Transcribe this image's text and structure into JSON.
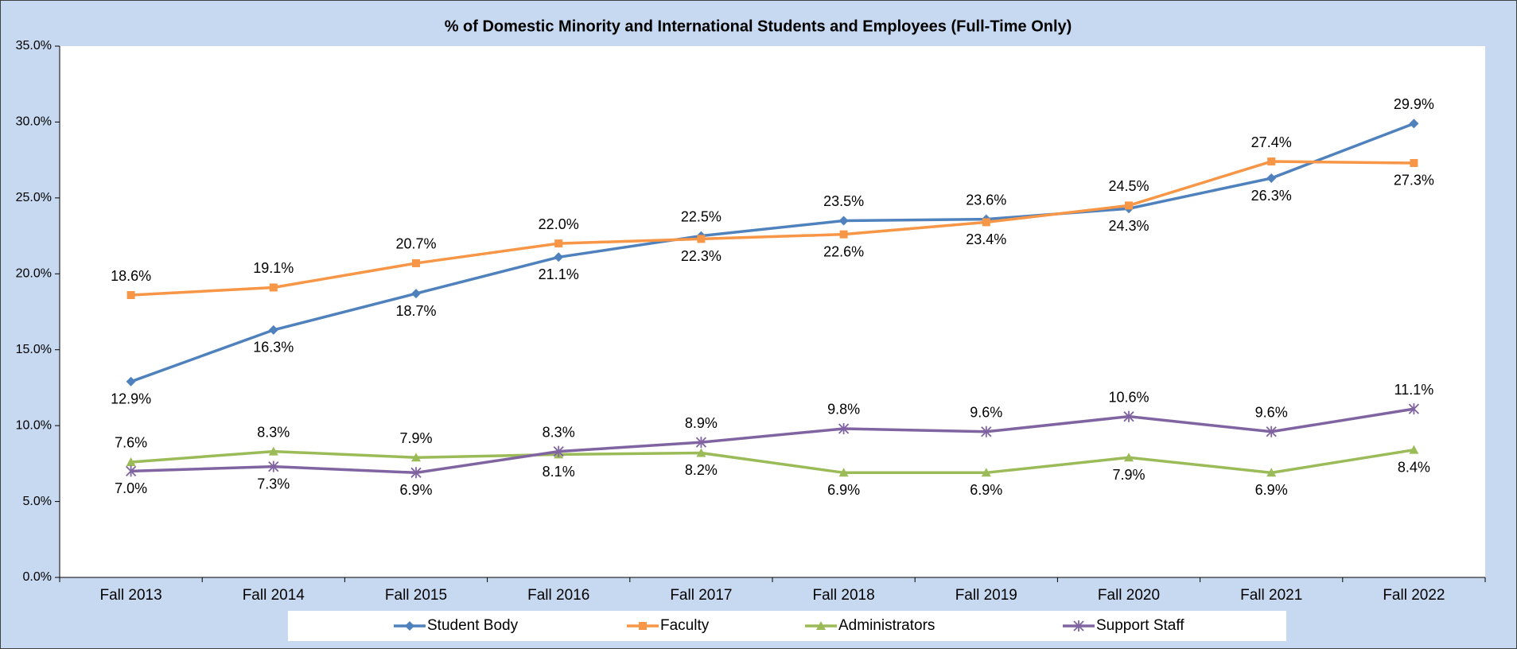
{
  "chart_data": {
    "type": "line",
    "title": "% of Domestic Minority and International Students and Employees (Full-Time Only)",
    "categories": [
      "Fall 2013",
      "Fall 2014",
      "Fall 2015",
      "Fall 2016",
      "Fall 2017",
      "Fall 2018",
      "Fall 2019",
      "Fall 2020",
      "Fall 2021",
      "Fall 2022"
    ],
    "series": [
      {
        "name": "Student Body",
        "color": "#4f81bd",
        "marker": "diamond",
        "values": [
          12.9,
          16.3,
          18.7,
          21.1,
          22.5,
          23.5,
          23.6,
          24.3,
          26.3,
          29.9
        ],
        "value_labels": [
          "12.9%",
          "16.3%",
          "18.7%",
          "21.1%",
          "22.5%",
          "23.5%",
          "23.6%",
          "24.3%",
          "26.3%",
          "29.9%"
        ]
      },
      {
        "name": "Faculty",
        "color": "#f79646",
        "marker": "square",
        "values": [
          18.6,
          19.1,
          20.7,
          22.0,
          22.3,
          22.6,
          23.4,
          24.5,
          27.4,
          27.3
        ],
        "value_labels": [
          "18.6%",
          "19.1%",
          "20.7%",
          "22.0%",
          "22.3%",
          "22.6%",
          "23.4%",
          "24.5%",
          "27.4%",
          "27.3%"
        ]
      },
      {
        "name": "Administrators",
        "color": "#9bbb59",
        "marker": "triangle",
        "values": [
          7.6,
          8.3,
          7.9,
          8.1,
          8.2,
          6.9,
          6.9,
          7.9,
          6.9,
          8.4
        ],
        "value_labels": [
          "7.6%",
          "8.3%",
          "7.9%",
          "8.1%",
          "8.2%",
          "6.9%",
          "6.9%",
          "7.9%",
          "6.9%",
          "8.4%"
        ]
      },
      {
        "name": "Support Staff",
        "color": "#8064a2",
        "marker": "star",
        "values": [
          7.0,
          7.3,
          6.9,
          8.3,
          8.9,
          9.8,
          9.6,
          10.6,
          9.6,
          11.1
        ],
        "value_labels": [
          "7.0%",
          "7.3%",
          "6.9%",
          "8.3%",
          "8.9%",
          "9.8%",
          "9.6%",
          "10.6%",
          "9.6%",
          "11.1%"
        ]
      }
    ],
    "ylim": [
      0,
      35
    ],
    "yticks": [
      {
        "value": 0,
        "label": "0.0%"
      },
      {
        "value": 5,
        "label": "5.0%"
      },
      {
        "value": 10,
        "label": "10.0%"
      },
      {
        "value": 15,
        "label": "15.0%"
      },
      {
        "value": 20,
        "label": "20.0%"
      },
      {
        "value": 25,
        "label": "25.0%"
      },
      {
        "value": 30,
        "label": "30.0%"
      },
      {
        "value": 35,
        "label": "35.0%"
      }
    ],
    "legend": "bottom"
  }
}
